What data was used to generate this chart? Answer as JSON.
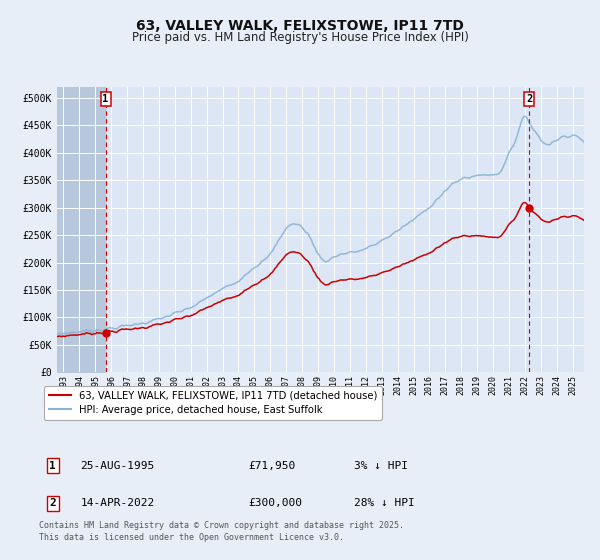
{
  "title": "63, VALLEY WALK, FELIXSTOWE, IP11 7TD",
  "subtitle": "Price paid vs. HM Land Registry's House Price Index (HPI)",
  "title_fontsize": 10,
  "subtitle_fontsize": 8.5,
  "bg_color": "#e8eef8",
  "plot_bg_color": "#dce6f5",
  "hatch_color": "#b8c8dc",
  "grid_color": "#ffffff",
  "red_line_color": "#cc0000",
  "blue_line_color": "#89b4d4",
  "point1_x": 1995.65,
  "point1_y": 71950,
  "point2_x": 2022.28,
  "point2_y": 300000,
  "legend_label_red": "63, VALLEY WALK, FELIXSTOWE, IP11 7TD (detached house)",
  "legend_label_blue": "HPI: Average price, detached house, East Suffolk",
  "table_row1": [
    "1",
    "25-AUG-1995",
    "£71,950",
    "3% ↓ HPI"
  ],
  "table_row2": [
    "2",
    "14-APR-2022",
    "£300,000",
    "28% ↓ HPI"
  ],
  "footer": "Contains HM Land Registry data © Crown copyright and database right 2025.\nThis data is licensed under the Open Government Licence v3.0.",
  "ylim": [
    0,
    520000
  ],
  "yticks": [
    0,
    50000,
    100000,
    150000,
    200000,
    250000,
    300000,
    350000,
    400000,
    450000,
    500000
  ],
  "ytick_labels": [
    "£0",
    "£50K",
    "£100K",
    "£150K",
    "£200K",
    "£250K",
    "£300K",
    "£350K",
    "£400K",
    "£450K",
    "£500K"
  ],
  "xlim_start": 1992.6,
  "xlim_end": 2025.7,
  "xtick_years": [
    1993,
    1994,
    1995,
    1996,
    1997,
    1998,
    1999,
    2000,
    2001,
    2002,
    2003,
    2004,
    2005,
    2006,
    2007,
    2008,
    2009,
    2010,
    2011,
    2012,
    2013,
    2014,
    2015,
    2016,
    2017,
    2018,
    2019,
    2020,
    2021,
    2022,
    2023,
    2024,
    2025
  ],
  "hpi_key_years": [
    1992.6,
    1993.0,
    1994.0,
    1995.0,
    1996.0,
    1997.0,
    1998.0,
    1999.0,
    2000.0,
    2001.0,
    2002.0,
    2003.0,
    2004.0,
    2005.0,
    2006.0,
    2007.0,
    2007.8,
    2008.5,
    2009.3,
    2010.0,
    2011.0,
    2012.0,
    2013.0,
    2014.0,
    2015.0,
    2016.0,
    2017.0,
    2018.0,
    2019.0,
    2019.8,
    2020.5,
    2021.0,
    2021.5,
    2022.0,
    2022.4,
    2022.8,
    2023.2,
    2023.8,
    2024.5,
    2025.7
  ],
  "hpi_key_vals": [
    69000,
    71000,
    74000,
    77000,
    80000,
    85000,
    90000,
    97000,
    107000,
    118000,
    135000,
    152000,
    168000,
    192000,
    215000,
    262000,
    268000,
    245000,
    205000,
    210000,
    218000,
    225000,
    240000,
    258000,
    278000,
    302000,
    330000,
    352000,
    358000,
    360000,
    368000,
    400000,
    430000,
    465000,
    450000,
    432000,
    418000,
    420000,
    430000,
    420000
  ]
}
